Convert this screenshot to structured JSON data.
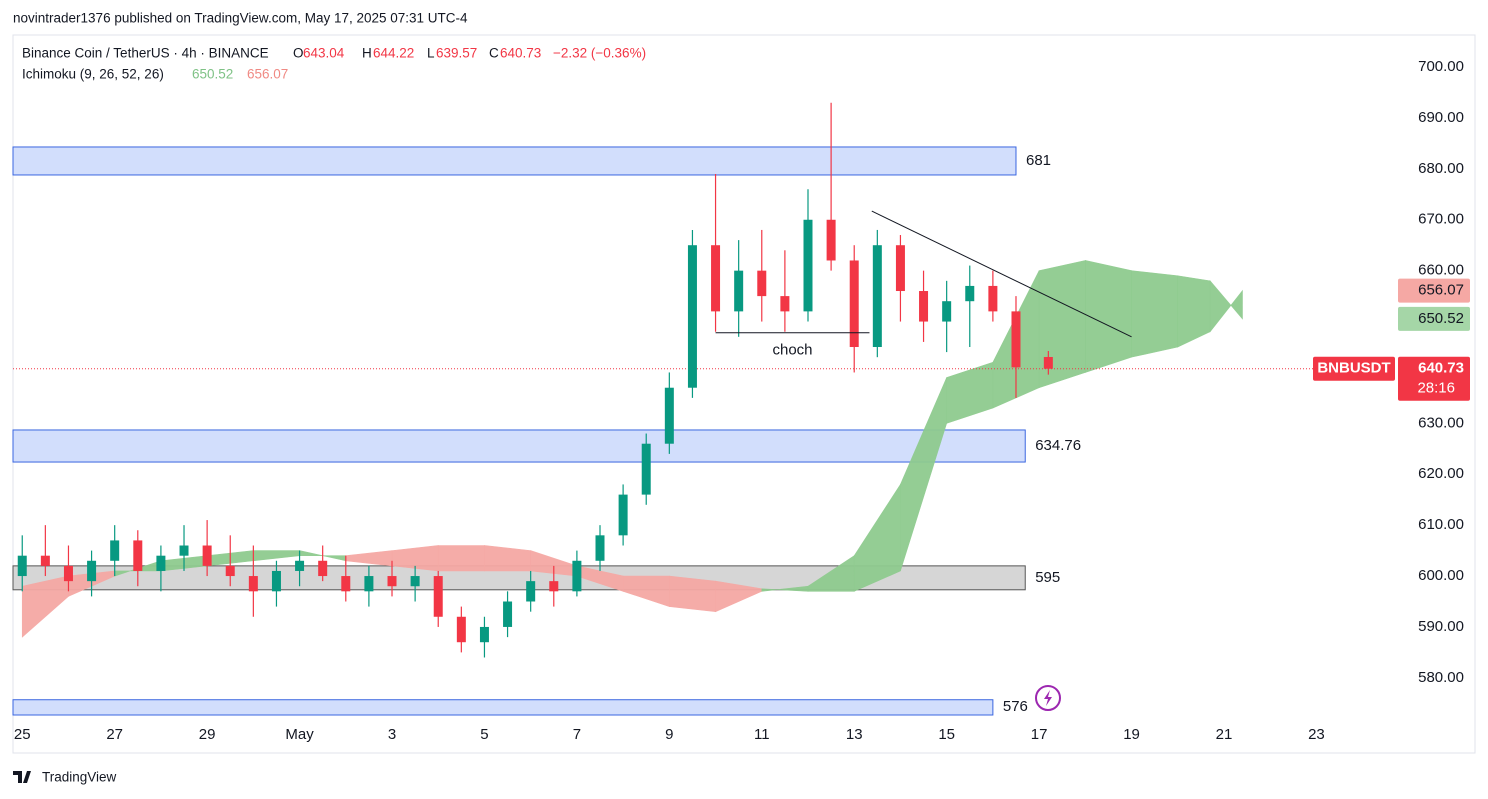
{
  "chart_data": {
    "type": "candlestick",
    "header": "novintrader1376 published on TradingView.com, May 17, 2025 07:31 UTC-4",
    "symbol": "Binance Coin / TetherUS · 4h · BINANCE",
    "ohlc_labels": [
      "O",
      "H",
      "L",
      "C"
    ],
    "change": "−2.32 (−0.36%)",
    "indicator": "Ichimoku (9, 26, 52, 26)",
    "ticker": "BNBUSDT",
    "countdown": "28:16",
    "brand": "TradingView",
    "up_color": "#089981",
    "down_color": "#f23645",
    "x": [
      0,
      0.5,
      1,
      1.5,
      2,
      2.5,
      3,
      3.5,
      4,
      4.5,
      5,
      5.5,
      6,
      6.5,
      7,
      7.5,
      8,
      8.5,
      9,
      9.5,
      10,
      10.5,
      11,
      11.5,
      12,
      12.5,
      13,
      13.5,
      14,
      14.5,
      15,
      15.5,
      16,
      16.5,
      17,
      17.5,
      18,
      18.5,
      19,
      19.5,
      20,
      20.5,
      21,
      21.5,
      22.2
    ],
    "open": [
      600,
      604,
      602,
      599,
      603,
      607,
      601,
      604,
      606,
      602,
      600,
      597,
      601,
      603,
      600,
      597,
      600,
      598,
      600,
      592,
      587,
      590,
      595,
      599,
      597,
      603,
      608,
      616,
      626,
      637,
      665,
      652,
      660,
      655,
      652,
      670,
      662,
      645,
      665,
      656,
      650,
      654,
      657,
      652,
      643.04
    ],
    "high": [
      608,
      610,
      606,
      605,
      610,
      609,
      606,
      610,
      611,
      608,
      606,
      603,
      605,
      606,
      604,
      602,
      603,
      602,
      601,
      594,
      592,
      597,
      601,
      602,
      605,
      610,
      618,
      628,
      640,
      668,
      679,
      666,
      668,
      664,
      676,
      693,
      665,
      668,
      667,
      660,
      658,
      661,
      660,
      655,
      644.22
    ],
    "low": [
      597,
      600,
      597,
      596,
      600,
      598,
      597,
      601,
      600,
      598,
      592,
      594,
      598,
      599,
      595,
      594,
      596,
      595,
      590,
      585,
      584,
      588,
      593,
      594,
      596,
      601,
      606,
      614,
      624,
      635,
      648,
      647,
      650,
      648,
      650,
      660,
      640,
      643,
      650,
      646,
      644,
      645,
      650,
      635,
      639.57
    ],
    "close": [
      604,
      602,
      599,
      603,
      607,
      601,
      604,
      606,
      602,
      600,
      597,
      601,
      603,
      600,
      597,
      600,
      598,
      600,
      592,
      587,
      590,
      595,
      599,
      597,
      603,
      608,
      616,
      626,
      637,
      665,
      652,
      660,
      655,
      652,
      670,
      662,
      645,
      665,
      656,
      650,
      654,
      657,
      652,
      641,
      640.73
    ],
    "ichimoku": {
      "x": [
        0,
        1,
        2,
        3,
        4,
        5,
        6,
        7,
        8,
        9,
        10,
        11,
        12,
        13,
        14,
        15,
        16,
        17,
        18,
        19,
        20,
        21,
        22,
        23,
        24,
        25,
        25.7,
        26.4
      ],
      "span_a": [
        588,
        596,
        600,
        603,
        604,
        605,
        605,
        603,
        602,
        601,
        601,
        601,
        600,
        597,
        594,
        593,
        597,
        598,
        604,
        618,
        639,
        642,
        660,
        662,
        660,
        659,
        658,
        650.52
      ],
      "span_b": [
        598,
        600,
        601,
        601,
        602,
        603,
        604,
        604,
        605,
        606,
        606,
        605,
        602,
        600,
        600,
        599,
        597.5,
        597,
        597,
        601,
        630,
        633,
        637,
        640,
        643,
        645,
        648,
        656.07
      ],
      "up_color": "#8fcb8f",
      "down_color": "#f5a8a4"
    },
    "zones": [
      {
        "label": "681",
        "range": [
          678.8,
          684.3
        ],
        "x_end": 21.5,
        "color": "#d2defc",
        "stroke": "#3a66e0"
      },
      {
        "label": "634.76",
        "range": [
          622.4,
          628.7
        ],
        "x_end": 21.7,
        "color": "#d2defc",
        "stroke": "#3a66e0"
      },
      {
        "label": "595",
        "range": [
          597.3,
          602
        ],
        "x_end": 21.7,
        "color": "#d6d6d6",
        "stroke": "#555555"
      },
      {
        "label": "576",
        "range": [
          572.7,
          575.7
        ],
        "x_end": 21,
        "color": "#d2defc",
        "stroke": "#3a66e0"
      }
    ],
    "trendlines": [
      {
        "x": [
          18.38,
          24
        ],
        "y": [
          671.7,
          647
        ]
      }
    ],
    "annotations": [
      {
        "text": "choch",
        "x": [
          15,
          18.33
        ],
        "y": 647.8
      }
    ],
    "xlim": [
      -0.2,
      29.7
    ],
    "ylim": [
      572.7,
      706.3
    ],
    "xticks": [
      {
        "value": 0,
        "label": "25"
      },
      {
        "value": 2,
        "label": "27"
      },
      {
        "value": 4,
        "label": "29"
      },
      {
        "value": 6,
        "label": "May"
      },
      {
        "value": 8,
        "label": "3"
      },
      {
        "value": 10,
        "label": "5"
      },
      {
        "value": 12,
        "label": "7"
      },
      {
        "value": 14,
        "label": "9"
      },
      {
        "value": 16,
        "label": "11"
      },
      {
        "value": 18,
        "label": "13"
      },
      {
        "value": 20,
        "label": "15"
      },
      {
        "value": 22,
        "label": "17"
      },
      {
        "value": 24,
        "label": "19"
      },
      {
        "value": 26,
        "label": "21"
      },
      {
        "value": 28,
        "label": "23"
      }
    ],
    "yticks": [
      {
        "value": 580,
        "label": "580.00"
      },
      {
        "value": 590,
        "label": "590.00"
      },
      {
        "value": 600,
        "label": "600.00"
      },
      {
        "value": 610,
        "label": "610.00"
      },
      {
        "value": 620,
        "label": "620.00"
      },
      {
        "value": 630,
        "label": "630.00"
      },
      {
        "value": 640,
        "label": "640.00"
      },
      {
        "value": 650,
        "label": "650.00"
      },
      {
        "value": 660,
        "label": "660.00"
      },
      {
        "value": 670,
        "label": "670.00"
      },
      {
        "value": 680,
        "label": "680.00"
      },
      {
        "value": 690,
        "label": "690.00"
      },
      {
        "value": 700,
        "label": "700.00"
      }
    ],
    "grid": false
  }
}
